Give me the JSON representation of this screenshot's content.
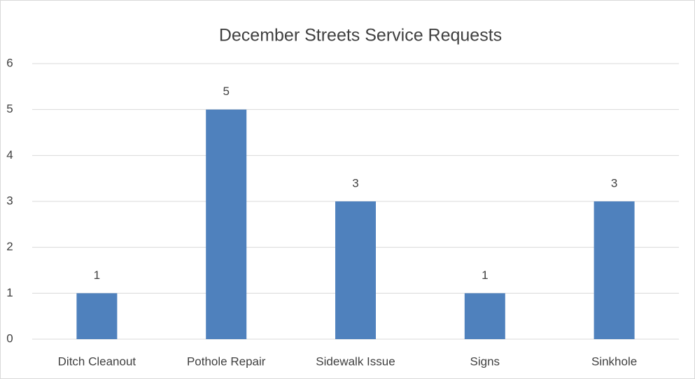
{
  "chart_data": {
    "type": "bar",
    "title": "December Streets Service Requests",
    "categories": [
      "Ditch Cleanout",
      "Pothole Repair",
      "Sidewalk Issue",
      "Signs",
      "Sinkhole"
    ],
    "values": [
      1,
      5,
      3,
      1,
      3
    ],
    "color": "#4f81bd",
    "ylim": [
      0,
      6
    ],
    "yticks": [
      0,
      1,
      2,
      3,
      4,
      5,
      6
    ],
    "grid": true
  }
}
